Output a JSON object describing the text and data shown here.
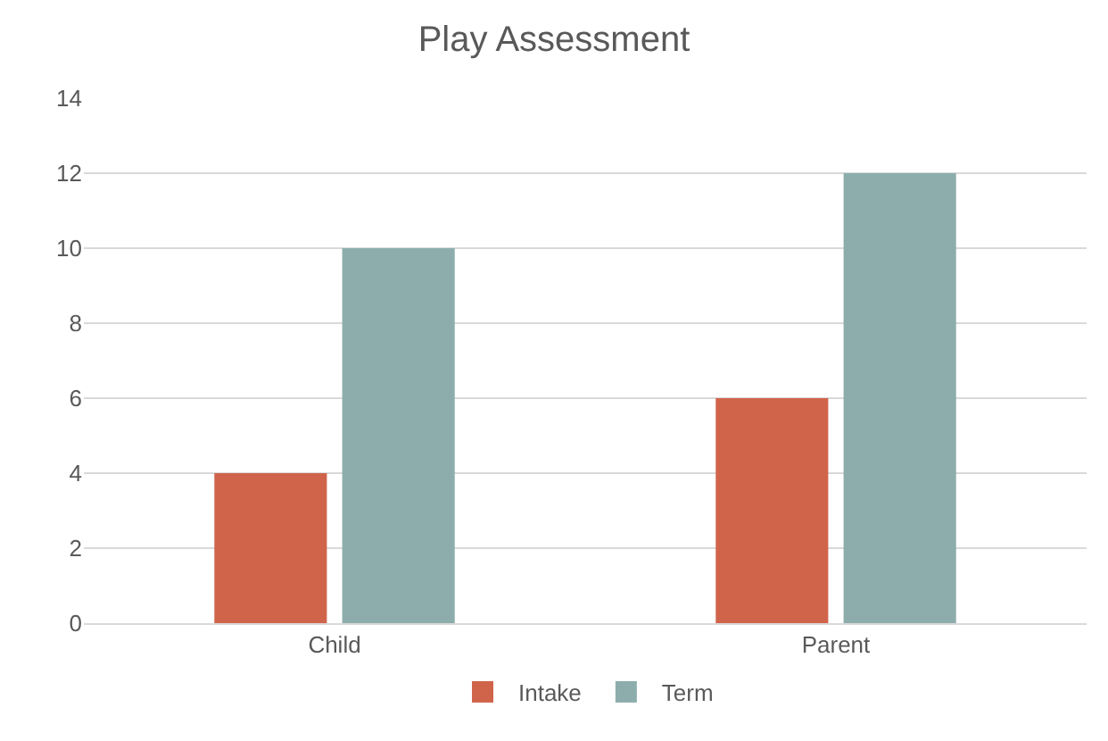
{
  "chart_data": {
    "type": "bar",
    "title": "Play Assessment",
    "categories": [
      "Child",
      "Parent"
    ],
    "series": [
      {
        "name": "Intake",
        "color": "#d0644a",
        "values": [
          4,
          6
        ]
      },
      {
        "name": "Term",
        "color": "#8cadac",
        "values": [
          10,
          12
        ]
      }
    ],
    "ylim": [
      0,
      14
    ],
    "yticks": [
      0,
      2,
      4,
      6,
      8,
      10,
      12,
      14
    ],
    "grid": "y",
    "legend": "bottom"
  }
}
